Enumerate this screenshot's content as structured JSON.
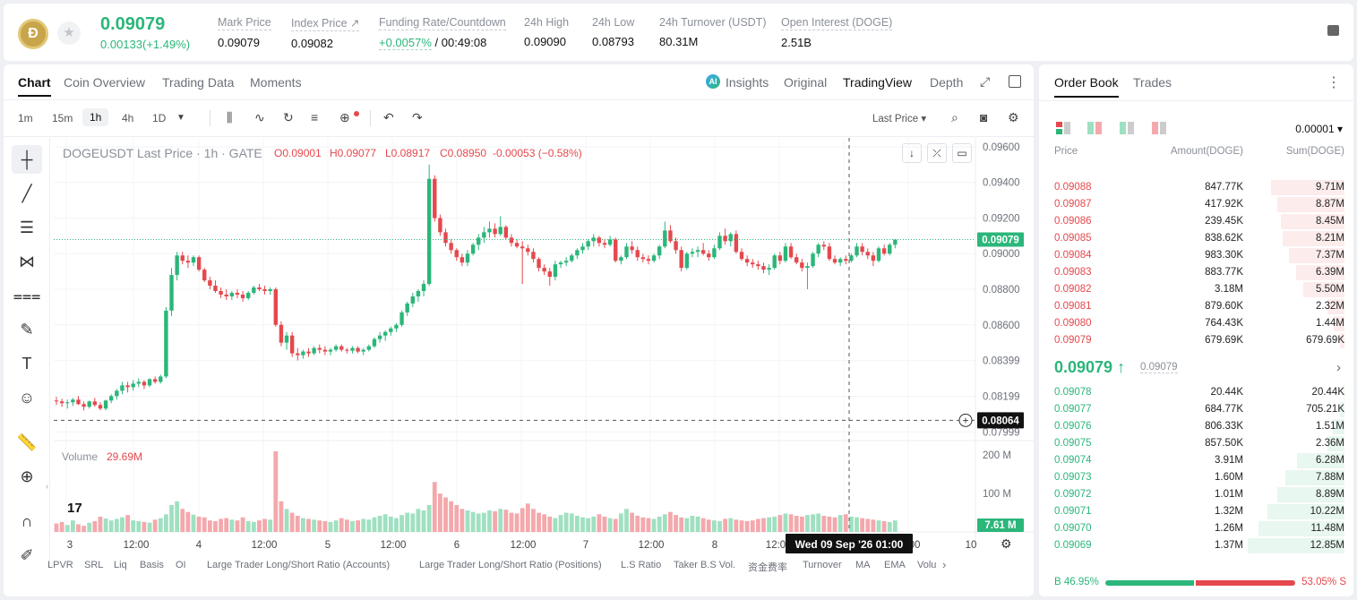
{
  "header": {
    "logo_letter": "Ð",
    "last_price": "0.09079",
    "price_change": "0.00133(+1.49%)",
    "stats": [
      {
        "label": "Mark Price",
        "value": "0.09079",
        "x": 0
      },
      {
        "label": "Index Price ↗",
        "value": "0.09082"
      },
      {
        "label": "Funding Rate/Countdown",
        "value_green": "+0.0057%",
        "value_rest": " / 00:49:08"
      },
      {
        "label": "24h High",
        "value": "0.09090"
      },
      {
        "label": "24h Low",
        "value": "0.08793"
      },
      {
        "label": "24h Turnover (USDT)",
        "value": "80.31M"
      },
      {
        "label": "Open Interest (DOGE)",
        "value": "2.51B"
      }
    ]
  },
  "chart_tabs": [
    "Chart",
    "Coin Overview",
    "Trading Data",
    "Moments"
  ],
  "view_tabs": {
    "insights": "Insights",
    "original": "Original",
    "tradingview": "TradingView",
    "depth": "Depth"
  },
  "ai_badge": "AI",
  "timeframes": [
    "1m",
    "15m",
    "1h",
    "4h",
    "1D"
  ],
  "price_type": "Last Price ▾",
  "legend": {
    "symbol": "DOGEUSDT Last Price · 1h · GATE",
    "o": "O0.09001",
    "h": "H0.09077",
    "l": "L0.08917",
    "c": "C0.08950",
    "change": "-0.00053 (−0.58%)"
  },
  "volume_legend": {
    "label": "Volume",
    "value": "29.69M"
  },
  "price_axis": [
    "0.09600",
    "0.09400",
    "0.09200",
    "0.09000",
    "0.08800",
    "0.08600",
    "0.08399",
    "0.08199",
    "0.07999"
  ],
  "volume_axis": [
    "200 M",
    "100 M"
  ],
  "current_price_tag": "0.09079",
  "crosshair_price_tag": "0.08064",
  "volume_tag": "7.61 M",
  "time_axis": [
    "3",
    "12:00",
    "4",
    "12:00",
    "5",
    "12:00",
    "6",
    "12:00",
    "7",
    "12:00",
    "8",
    "12:0",
    "00",
    "10"
  ],
  "crosshair_time": "Wed 09 Sep '26   01:00",
  "tv_logo": "17",
  "indicators": [
    "LPVR",
    "SRL",
    "Liq",
    "Basis",
    "OI",
    "Large Trader Long/Short Ratio (Accounts)",
    "Large Trader Long/Short Ratio (Positions)",
    "L.S Ratio",
    "Taker B.S Vol.",
    "资金费率",
    "Turnover",
    "MA",
    "EMA",
    "Volu"
  ],
  "chart_data": {
    "type": "candlestick",
    "symbol": "DOGEUSDT",
    "interval": "1h",
    "y_range": [
      0.0795,
      0.0965
    ],
    "candles": [
      [
        0.08175,
        0.08195,
        0.0815,
        0.0817
      ],
      [
        0.0817,
        0.08185,
        0.0814,
        0.0816
      ],
      [
        0.0816,
        0.0818,
        0.0813,
        0.08165
      ],
      [
        0.08165,
        0.0819,
        0.08145,
        0.0818
      ],
      [
        0.0818,
        0.082,
        0.0815,
        0.08155
      ],
      [
        0.08155,
        0.0817,
        0.0812,
        0.0814
      ],
      [
        0.0814,
        0.08175,
        0.0813,
        0.0817
      ],
      [
        0.0817,
        0.0819,
        0.0814,
        0.0815
      ],
      [
        0.0815,
        0.08165,
        0.0812,
        0.0813
      ],
      [
        0.0813,
        0.0818,
        0.0812,
        0.08175
      ],
      [
        0.08175,
        0.0821,
        0.0816,
        0.082
      ],
      [
        0.082,
        0.0824,
        0.0818,
        0.0823
      ],
      [
        0.0823,
        0.0828,
        0.0821,
        0.0826
      ],
      [
        0.0826,
        0.0828,
        0.0822,
        0.0825
      ],
      [
        0.0825,
        0.0829,
        0.0823,
        0.0827
      ],
      [
        0.0827,
        0.083,
        0.0825,
        0.0828
      ],
      [
        0.0828,
        0.0829,
        0.0824,
        0.0826
      ],
      [
        0.0826,
        0.083,
        0.0825,
        0.08295
      ],
      [
        0.08295,
        0.0831,
        0.0827,
        0.0828
      ],
      [
        0.0828,
        0.0832,
        0.0827,
        0.0831
      ],
      [
        0.0831,
        0.087,
        0.083,
        0.0868
      ],
      [
        0.0868,
        0.0892,
        0.0865,
        0.0888
      ],
      [
        0.0888,
        0.0901,
        0.0885,
        0.0899
      ],
      [
        0.0899,
        0.0901,
        0.0894,
        0.0896
      ],
      [
        0.0896,
        0.0899,
        0.0892,
        0.0895
      ],
      [
        0.0895,
        0.0899,
        0.0893,
        0.0898
      ],
      [
        0.0898,
        0.0899,
        0.089,
        0.0891
      ],
      [
        0.0891,
        0.0892,
        0.0884,
        0.0885
      ],
      [
        0.0885,
        0.0887,
        0.088,
        0.0882
      ],
      [
        0.0882,
        0.0885,
        0.0878,
        0.0879
      ],
      [
        0.0879,
        0.0881,
        0.0875,
        0.0877
      ],
      [
        0.0877,
        0.088,
        0.0874,
        0.0876
      ],
      [
        0.0876,
        0.0879,
        0.0874,
        0.0878
      ],
      [
        0.0878,
        0.088,
        0.0875,
        0.0877
      ],
      [
        0.0877,
        0.0879,
        0.0873,
        0.0875
      ],
      [
        0.0875,
        0.0879,
        0.0874,
        0.0878
      ],
      [
        0.0878,
        0.0882,
        0.0877,
        0.0881
      ],
      [
        0.0881,
        0.0883,
        0.0879,
        0.088
      ],
      [
        0.088,
        0.0882,
        0.0877,
        0.0879
      ],
      [
        0.0879,
        0.0881,
        0.0877,
        0.088
      ],
      [
        0.088,
        0.0881,
        0.0859,
        0.086
      ],
      [
        0.086,
        0.0862,
        0.0848,
        0.085
      ],
      [
        0.085,
        0.0856,
        0.0846,
        0.0854
      ],
      [
        0.0854,
        0.0856,
        0.0842,
        0.0844
      ],
      [
        0.0844,
        0.0847,
        0.084,
        0.0843
      ],
      [
        0.0843,
        0.0846,
        0.0841,
        0.0845
      ],
      [
        0.0845,
        0.0847,
        0.0842,
        0.0844
      ],
      [
        0.0844,
        0.0848,
        0.0843,
        0.0847
      ],
      [
        0.0847,
        0.0849,
        0.0844,
        0.0846
      ],
      [
        0.0846,
        0.0848,
        0.0843,
        0.0845
      ],
      [
        0.0845,
        0.0847,
        0.0843,
        0.0846
      ],
      [
        0.0846,
        0.0849,
        0.0845,
        0.0848
      ],
      [
        0.0848,
        0.0849,
        0.0845,
        0.0846
      ],
      [
        0.0846,
        0.0847,
        0.0844,
        0.08455
      ],
      [
        0.08455,
        0.0848,
        0.0844,
        0.0847
      ],
      [
        0.0847,
        0.0848,
        0.0844,
        0.0845
      ],
      [
        0.0845,
        0.0847,
        0.0843,
        0.0846
      ],
      [
        0.0846,
        0.0849,
        0.0845,
        0.0848
      ],
      [
        0.0848,
        0.0853,
        0.0847,
        0.0852
      ],
      [
        0.0852,
        0.0856,
        0.085,
        0.0854
      ],
      [
        0.0854,
        0.0857,
        0.0851,
        0.0856
      ],
      [
        0.0856,
        0.0859,
        0.0854,
        0.0858
      ],
      [
        0.0858,
        0.0861,
        0.0856,
        0.086
      ],
      [
        0.086,
        0.0868,
        0.0859,
        0.0867
      ],
      [
        0.0867,
        0.0873,
        0.0865,
        0.0872
      ],
      [
        0.0872,
        0.0878,
        0.087,
        0.0876
      ],
      [
        0.0876,
        0.088,
        0.0873,
        0.0879
      ],
      [
        0.0879,
        0.0885,
        0.0876,
        0.0883
      ],
      [
        0.0883,
        0.095,
        0.0882,
        0.0942
      ],
      [
        0.0942,
        0.0944,
        0.0918,
        0.092
      ],
      [
        0.092,
        0.0922,
        0.091,
        0.0912
      ],
      [
        0.0912,
        0.0914,
        0.0904,
        0.0906
      ],
      [
        0.0906,
        0.0908,
        0.09,
        0.0902
      ],
      [
        0.0902,
        0.0903,
        0.0896,
        0.0898
      ],
      [
        0.0898,
        0.09,
        0.0893,
        0.0895
      ],
      [
        0.0895,
        0.0902,
        0.0893,
        0.09
      ],
      [
        0.09,
        0.0906,
        0.0899,
        0.0905
      ],
      [
        0.0905,
        0.0911,
        0.0902,
        0.0909
      ],
      [
        0.0909,
        0.0915,
        0.0906,
        0.0912
      ],
      [
        0.0912,
        0.0918,
        0.0909,
        0.0914
      ],
      [
        0.0914,
        0.0917,
        0.0909,
        0.0911
      ],
      [
        0.0911,
        0.0921,
        0.091,
        0.0915
      ],
      [
        0.0915,
        0.0916,
        0.0908,
        0.0909
      ],
      [
        0.0909,
        0.0911,
        0.0904,
        0.0906
      ],
      [
        0.0906,
        0.0908,
        0.0903,
        0.0904
      ],
      [
        0.0904,
        0.0907,
        0.0883,
        0.0903
      ],
      [
        0.0903,
        0.0905,
        0.0899,
        0.0901
      ],
      [
        0.0901,
        0.0903,
        0.0895,
        0.0897
      ],
      [
        0.0897,
        0.0898,
        0.089,
        0.0892
      ],
      [
        0.0892,
        0.0894,
        0.0888,
        0.089
      ],
      [
        0.089,
        0.0892,
        0.0882,
        0.0887
      ],
      [
        0.0887,
        0.0896,
        0.0885,
        0.0894
      ],
      [
        0.0894,
        0.0896,
        0.0892,
        0.0895
      ],
      [
        0.0895,
        0.0898,
        0.0893,
        0.0896
      ],
      [
        0.0896,
        0.09,
        0.0895,
        0.0899
      ],
      [
        0.0899,
        0.0903,
        0.0897,
        0.0902
      ],
      [
        0.0902,
        0.0906,
        0.09,
        0.0904
      ],
      [
        0.0904,
        0.0908,
        0.0902,
        0.0907
      ],
      [
        0.0907,
        0.0911,
        0.0904,
        0.0909
      ],
      [
        0.0909,
        0.091,
        0.0904,
        0.0906
      ],
      [
        0.0906,
        0.0908,
        0.0903,
        0.0905
      ],
      [
        0.0905,
        0.091,
        0.0904,
        0.0908
      ],
      [
        0.0908,
        0.0909,
        0.0895,
        0.0896
      ],
      [
        0.0896,
        0.0899,
        0.0894,
        0.0898
      ],
      [
        0.0898,
        0.0906,
        0.0897,
        0.0904
      ],
      [
        0.0904,
        0.0907,
        0.09,
        0.0902
      ],
      [
        0.0902,
        0.0904,
        0.0896,
        0.0898
      ],
      [
        0.0898,
        0.09,
        0.0895,
        0.0897
      ],
      [
        0.0897,
        0.0899,
        0.0894,
        0.0896
      ],
      [
        0.0896,
        0.09,
        0.0895,
        0.0899
      ],
      [
        0.0899,
        0.0905,
        0.0897,
        0.0904
      ],
      [
        0.0904,
        0.0918,
        0.0903,
        0.0913
      ],
      [
        0.0913,
        0.0916,
        0.0906,
        0.0907
      ],
      [
        0.0907,
        0.0909,
        0.09,
        0.0902
      ],
      [
        0.0902,
        0.0904,
        0.089,
        0.0892
      ],
      [
        0.0892,
        0.0901,
        0.0891,
        0.09
      ],
      [
        0.09,
        0.0903,
        0.0898,
        0.0901
      ],
      [
        0.0901,
        0.0904,
        0.0898,
        0.0902
      ],
      [
        0.0902,
        0.0906,
        0.0899,
        0.09
      ],
      [
        0.09,
        0.0902,
        0.0896,
        0.0898
      ],
      [
        0.0898,
        0.0905,
        0.0897,
        0.0903
      ],
      [
        0.0903,
        0.0912,
        0.0902,
        0.091
      ],
      [
        0.091,
        0.0914,
        0.0905,
        0.0907
      ],
      [
        0.0907,
        0.0912,
        0.0904,
        0.0911
      ],
      [
        0.0911,
        0.0913,
        0.09,
        0.0901
      ],
      [
        0.0901,
        0.0903,
        0.0896,
        0.0897
      ],
      [
        0.0897,
        0.0899,
        0.0893,
        0.0895
      ],
      [
        0.0895,
        0.0897,
        0.0892,
        0.0894
      ],
      [
        0.0894,
        0.0896,
        0.0891,
        0.0893
      ],
      [
        0.0893,
        0.0895,
        0.0889,
        0.0891
      ],
      [
        0.0891,
        0.0894,
        0.0888,
        0.0892
      ],
      [
        0.0892,
        0.09,
        0.0891,
        0.0899
      ],
      [
        0.0899,
        0.0901,
        0.0894,
        0.0896
      ],
      [
        0.0896,
        0.0906,
        0.0895,
        0.0904
      ],
      [
        0.0904,
        0.0906,
        0.0897,
        0.0898
      ],
      [
        0.0898,
        0.09,
        0.0894,
        0.0895
      ],
      [
        0.0895,
        0.0897,
        0.089,
        0.0892
      ],
      [
        0.0892,
        0.0895,
        0.088,
        0.0893
      ],
      [
        0.0893,
        0.0901,
        0.0892,
        0.09
      ],
      [
        0.09,
        0.0906,
        0.0898,
        0.0905
      ],
      [
        0.0905,
        0.0907,
        0.0902,
        0.0904
      ],
      [
        0.0904,
        0.0906,
        0.0896,
        0.0897
      ],
      [
        0.0897,
        0.0899,
        0.0894,
        0.0895
      ],
      [
        0.0895,
        0.0898,
        0.0893,
        0.0897
      ],
      [
        0.0897,
        0.0899,
        0.0894,
        0.0896
      ],
      [
        0.0896,
        0.09,
        0.0895,
        0.0899
      ],
      [
        0.0899,
        0.0906,
        0.0898,
        0.0904
      ],
      [
        0.0904,
        0.0906,
        0.0899,
        0.0901
      ],
      [
        0.0901,
        0.0903,
        0.0897,
        0.0899
      ],
      [
        0.0899,
        0.0901,
        0.0893,
        0.0896
      ],
      [
        0.0896,
        0.0904,
        0.0895,
        0.0903
      ],
      [
        0.0903,
        0.0905,
        0.0899,
        0.09
      ],
      [
        0.09,
        0.0906,
        0.0899,
        0.0905
      ],
      [
        0.0905,
        0.0908,
        0.0903,
        0.09079
      ]
    ],
    "volumes_M": [
      22,
      26,
      18,
      30,
      20,
      16,
      24,
      28,
      40,
      35,
      30,
      34,
      38,
      44,
      30,
      28,
      26,
      24,
      32,
      36,
      46,
      70,
      80,
      60,
      52,
      45,
      40,
      38,
      30,
      28,
      34,
      36,
      32,
      30,
      38,
      28,
      26,
      30,
      34,
      32,
      210,
      80,
      60,
      50,
      42,
      36,
      34,
      32,
      30,
      28,
      26,
      30,
      36,
      32,
      28,
      30,
      34,
      32,
      38,
      42,
      46,
      40,
      36,
      44,
      50,
      48,
      60,
      56,
      70,
      130,
      100,
      90,
      80,
      70,
      60,
      56,
      52,
      48,
      50,
      56,
      54,
      60,
      58,
      50,
      48,
      62,
      74,
      60,
      50,
      46,
      40,
      36,
      44,
      50,
      48,
      42,
      38,
      36,
      40,
      46,
      40,
      36,
      34,
      48,
      60,
      50,
      42,
      38,
      36,
      34,
      40,
      46,
      52,
      44,
      38,
      36,
      42,
      40,
      36,
      32,
      30,
      28,
      34,
      36,
      32,
      30,
      28,
      30,
      34,
      36,
      38,
      40,
      44,
      48,
      46,
      42,
      40,
      44,
      46,
      48,
      42,
      40,
      38,
      44,
      46,
      40,
      38,
      36,
      34,
      32,
      30,
      28,
      26,
      30,
      28,
      26,
      24,
      28,
      26,
      24,
      20,
      18,
      22,
      20,
      16,
      14,
      12,
      10,
      8
    ],
    "volume_range": [
      0,
      210
    ]
  },
  "order_book": {
    "tabs": [
      "Order Book",
      "Trades"
    ],
    "precision": "0.00001 ▾",
    "headers": {
      "price": "Price",
      "amount": "Amount(DOGE)",
      "sum": "Sum(DOGE)"
    },
    "asks": [
      {
        "price": "0.09088",
        "amount": "847.77K",
        "sum": "9.71M",
        "depth": 0.76
      },
      {
        "price": "0.09087",
        "amount": "417.92K",
        "sum": "8.87M",
        "depth": 0.69
      },
      {
        "price": "0.09086",
        "amount": "239.45K",
        "sum": "8.45M",
        "depth": 0.66
      },
      {
        "price": "0.09085",
        "amount": "838.62K",
        "sum": "8.21M",
        "depth": 0.64
      },
      {
        "price": "0.09084",
        "amount": "983.30K",
        "sum": "7.37M",
        "depth": 0.57
      },
      {
        "price": "0.09083",
        "amount": "883.77K",
        "sum": "6.39M",
        "depth": 0.5
      },
      {
        "price": "0.09082",
        "amount": "3.18M",
        "sum": "5.50M",
        "depth": 0.43
      },
      {
        "price": "0.09081",
        "amount": "879.60K",
        "sum": "2.32M",
        "depth": 0.18
      },
      {
        "price": "0.09080",
        "amount": "764.43K",
        "sum": "1.44M",
        "depth": 0.11
      },
      {
        "price": "0.09079",
        "amount": "679.69K",
        "sum": "679.69K",
        "depth": 0.05
      }
    ],
    "mid_price": "0.09079 ↑",
    "mid_ref": "0.09079",
    "bids": [
      {
        "price": "0.09078",
        "amount": "20.44K",
        "sum": "20.44K",
        "depth": 0.01
      },
      {
        "price": "0.09077",
        "amount": "684.77K",
        "sum": "705.21K",
        "depth": 0.05
      },
      {
        "price": "0.09076",
        "amount": "806.33K",
        "sum": "1.51M",
        "depth": 0.12
      },
      {
        "price": "0.09075",
        "amount": "857.50K",
        "sum": "2.36M",
        "depth": 0.18
      },
      {
        "price": "0.09074",
        "amount": "3.91M",
        "sum": "6.28M",
        "depth": 0.49
      },
      {
        "price": "0.09073",
        "amount": "1.60M",
        "sum": "7.88M",
        "depth": 0.61
      },
      {
        "price": "0.09072",
        "amount": "1.01M",
        "sum": "8.89M",
        "depth": 0.69
      },
      {
        "price": "0.09071",
        "amount": "1.32M",
        "sum": "10.22M",
        "depth": 0.8
      },
      {
        "price": "0.09070",
        "amount": "1.26M",
        "sum": "11.48M",
        "depth": 0.89
      },
      {
        "price": "0.09069",
        "amount": "1.37M",
        "sum": "12.85M",
        "depth": 1.0
      }
    ],
    "buy_ratio": "B  46.95%",
    "sell_ratio": "53.05%  S",
    "buy_fraction": 0.4695
  },
  "colors": {
    "up": "#2bb67a",
    "down": "#e5484d",
    "up_vol": "#9fe0c0",
    "down_vol": "#f4a8ac"
  }
}
